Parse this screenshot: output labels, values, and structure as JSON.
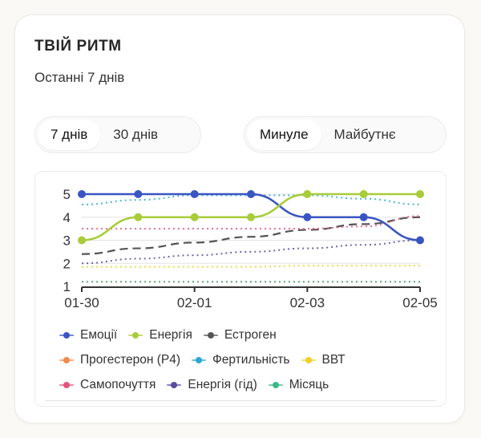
{
  "card": {
    "title": "ТВІЙ РИТМ",
    "subtitle": "Останні 7 днів"
  },
  "range_toggle": {
    "options": [
      {
        "label": "7 днів",
        "active": true
      },
      {
        "label": "30 днів",
        "active": false
      }
    ]
  },
  "time_toggle": {
    "options": [
      {
        "label": "Минуле",
        "active": true
      },
      {
        "label": "Майбутнє",
        "active": false
      }
    ]
  },
  "chart_data": {
    "type": "line",
    "title": "",
    "xlabel": "",
    "ylabel": "",
    "x": [
      "01-30",
      "01-31",
      "02-01",
      "02-02",
      "02-03",
      "02-04",
      "02-05"
    ],
    "x_tick_labels": [
      "01-30",
      "02-01",
      "02-03",
      "02-05"
    ],
    "y_ticks": [
      1,
      2,
      3,
      4,
      5
    ],
    "ylim": [
      1,
      5
    ],
    "grid": "horizontal",
    "legend_position": "bottom",
    "series": [
      {
        "name": "Емоції",
        "color": "#3a55c2",
        "style": "solid-markers",
        "values": [
          5,
          5,
          5,
          5,
          4,
          4,
          3
        ]
      },
      {
        "name": "Енергія",
        "color": "#a8cc3a",
        "style": "solid-markers",
        "values": [
          3,
          4,
          4,
          4,
          5,
          5,
          5
        ]
      },
      {
        "name": "Естроген",
        "color": "#555555",
        "style": "dashed",
        "values": [
          2.4,
          2.65,
          2.9,
          3.15,
          3.45,
          3.7,
          4.0
        ]
      },
      {
        "name": "Прогестерон (P4)",
        "color": "#f08a4b",
        "style": "dotted",
        "values": [
          1.2,
          1.2,
          1.2,
          1.2,
          1.2,
          1.2,
          1.2
        ]
      },
      {
        "name": "Фертильність",
        "color": "#2aa7d6",
        "style": "dotted",
        "values": [
          4.55,
          4.75,
          4.95,
          4.95,
          4.95,
          4.8,
          4.55
        ]
      },
      {
        "name": "ВВТ",
        "color": "#f2cf2a",
        "style": "dotted",
        "values": [
          1.85,
          1.85,
          1.85,
          1.85,
          1.9,
          1.9,
          1.9
        ]
      },
      {
        "name": "Самопочуття",
        "color": "#e0557e",
        "style": "dotted",
        "values": [
          3.5,
          3.5,
          3.5,
          3.5,
          3.5,
          3.6,
          4.05
        ]
      },
      {
        "name": "Енергія (гід)",
        "color": "#5a4aa0",
        "style": "dotted",
        "values": [
          2.0,
          2.2,
          2.35,
          2.5,
          2.65,
          2.8,
          3.0
        ]
      },
      {
        "name": "Місяць",
        "color": "#3cb88a",
        "style": "dotted",
        "values": [
          1.2,
          1.2,
          1.2,
          1.2,
          1.2,
          1.2,
          1.2
        ]
      }
    ]
  },
  "legend": {
    "rows": [
      [
        0,
        1,
        2
      ],
      [
        3,
        4,
        5
      ],
      [
        6,
        7,
        8
      ]
    ]
  }
}
